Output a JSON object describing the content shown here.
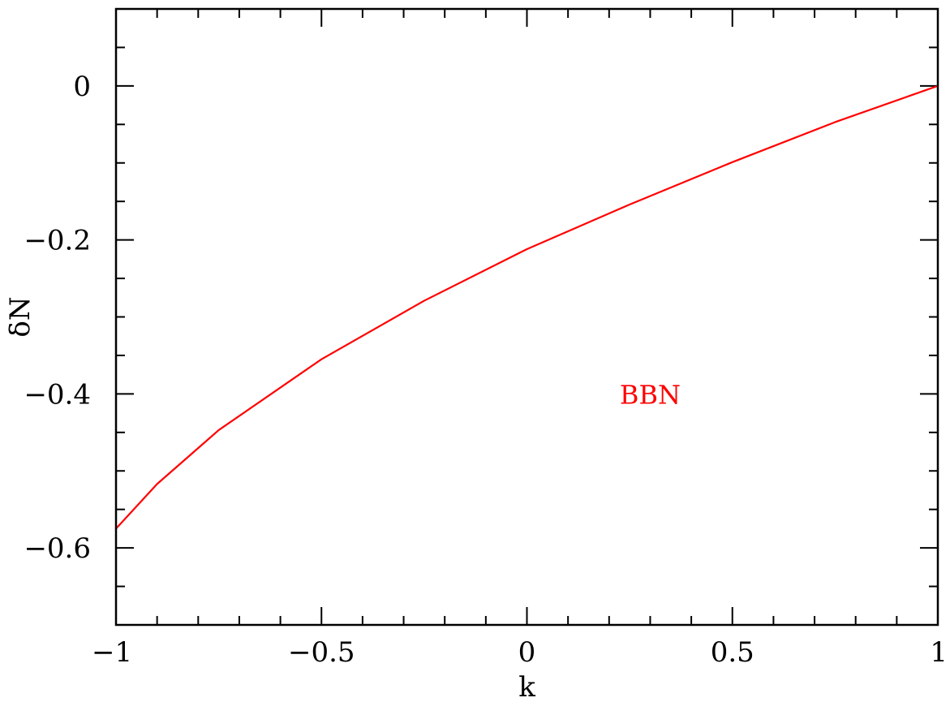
{
  "chart_data": {
    "type": "line",
    "title": "",
    "xlabel": "k",
    "ylabel": "δN",
    "xlim": [
      -1,
      1
    ],
    "ylim": [
      -0.7,
      0.1
    ],
    "xticks": [
      -1,
      -0.5,
      0,
      0.5,
      1
    ],
    "xtick_labels": [
      "−1",
      "−0.5",
      "0",
      "0.5",
      "1"
    ],
    "yticks": [
      0,
      -0.2,
      -0.4,
      -0.6
    ],
    "ytick_labels": [
      "0",
      "−0.2",
      "−0.4",
      "−0.6"
    ],
    "grid": false,
    "series": [
      {
        "color": "#ff0000",
        "x": [
          -1,
          -0.9,
          -0.75,
          -0.5,
          -0.25,
          0,
          0.25,
          0.5,
          0.75,
          1
        ],
        "y": [
          -0.575,
          -0.517,
          -0.447,
          -0.355,
          -0.279,
          -0.212,
          -0.154,
          -0.099,
          -0.047,
          0
        ]
      }
    ],
    "annotations": [
      {
        "text": "BBN",
        "x": 0.3,
        "y": -0.4,
        "color": "#ff0000"
      }
    ]
  }
}
